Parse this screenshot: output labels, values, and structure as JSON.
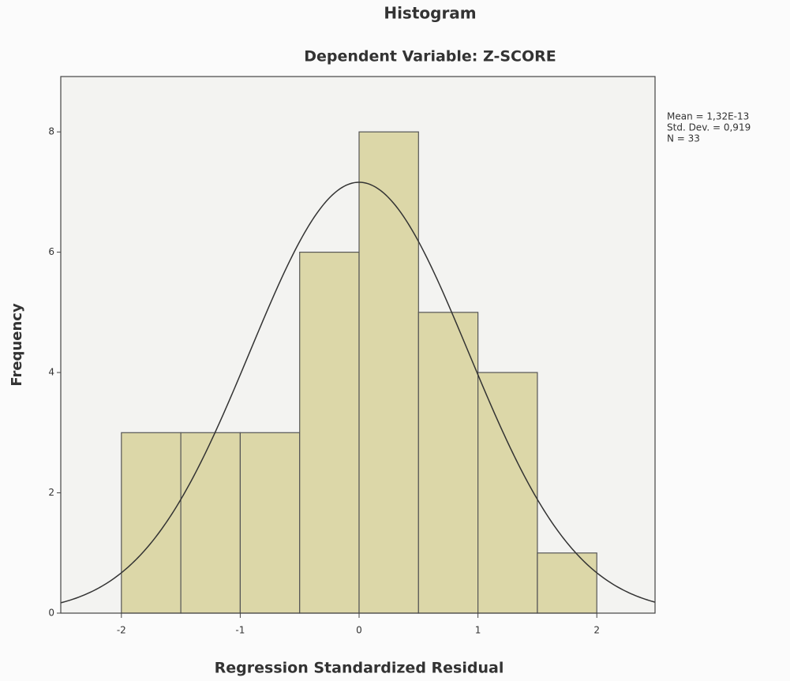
{
  "chart_data": {
    "type": "histogram",
    "title": "Histogram",
    "subtitle": "Dependent Variable: Z-SCORE",
    "x_label": "Regression Standardized Residual",
    "y_label": "Frequency",
    "bins": [
      -2,
      -1.5,
      -1,
      -0.5,
      0,
      0.5,
      1,
      1.5,
      2
    ],
    "values": [
      3,
      3,
      3,
      6,
      8,
      5,
      4,
      1
    ],
    "color": "#dcd7a8",
    "xlim": [
      -2.51,
      2.49
    ],
    "ylim": [
      0,
      8.92
    ],
    "xticks": [
      -2,
      -1,
      0,
      1,
      2
    ],
    "yticks": [
      0,
      2,
      4,
      6,
      8
    ],
    "stats": [
      {
        "value": 1.32e-13,
        "label": "Mean = 1,32E-13"
      },
      {
        "value": 0.919,
        "label": "Std. Dev. = 0,919"
      },
      {
        "value": 33,
        "label": "N = 33"
      }
    ]
  }
}
